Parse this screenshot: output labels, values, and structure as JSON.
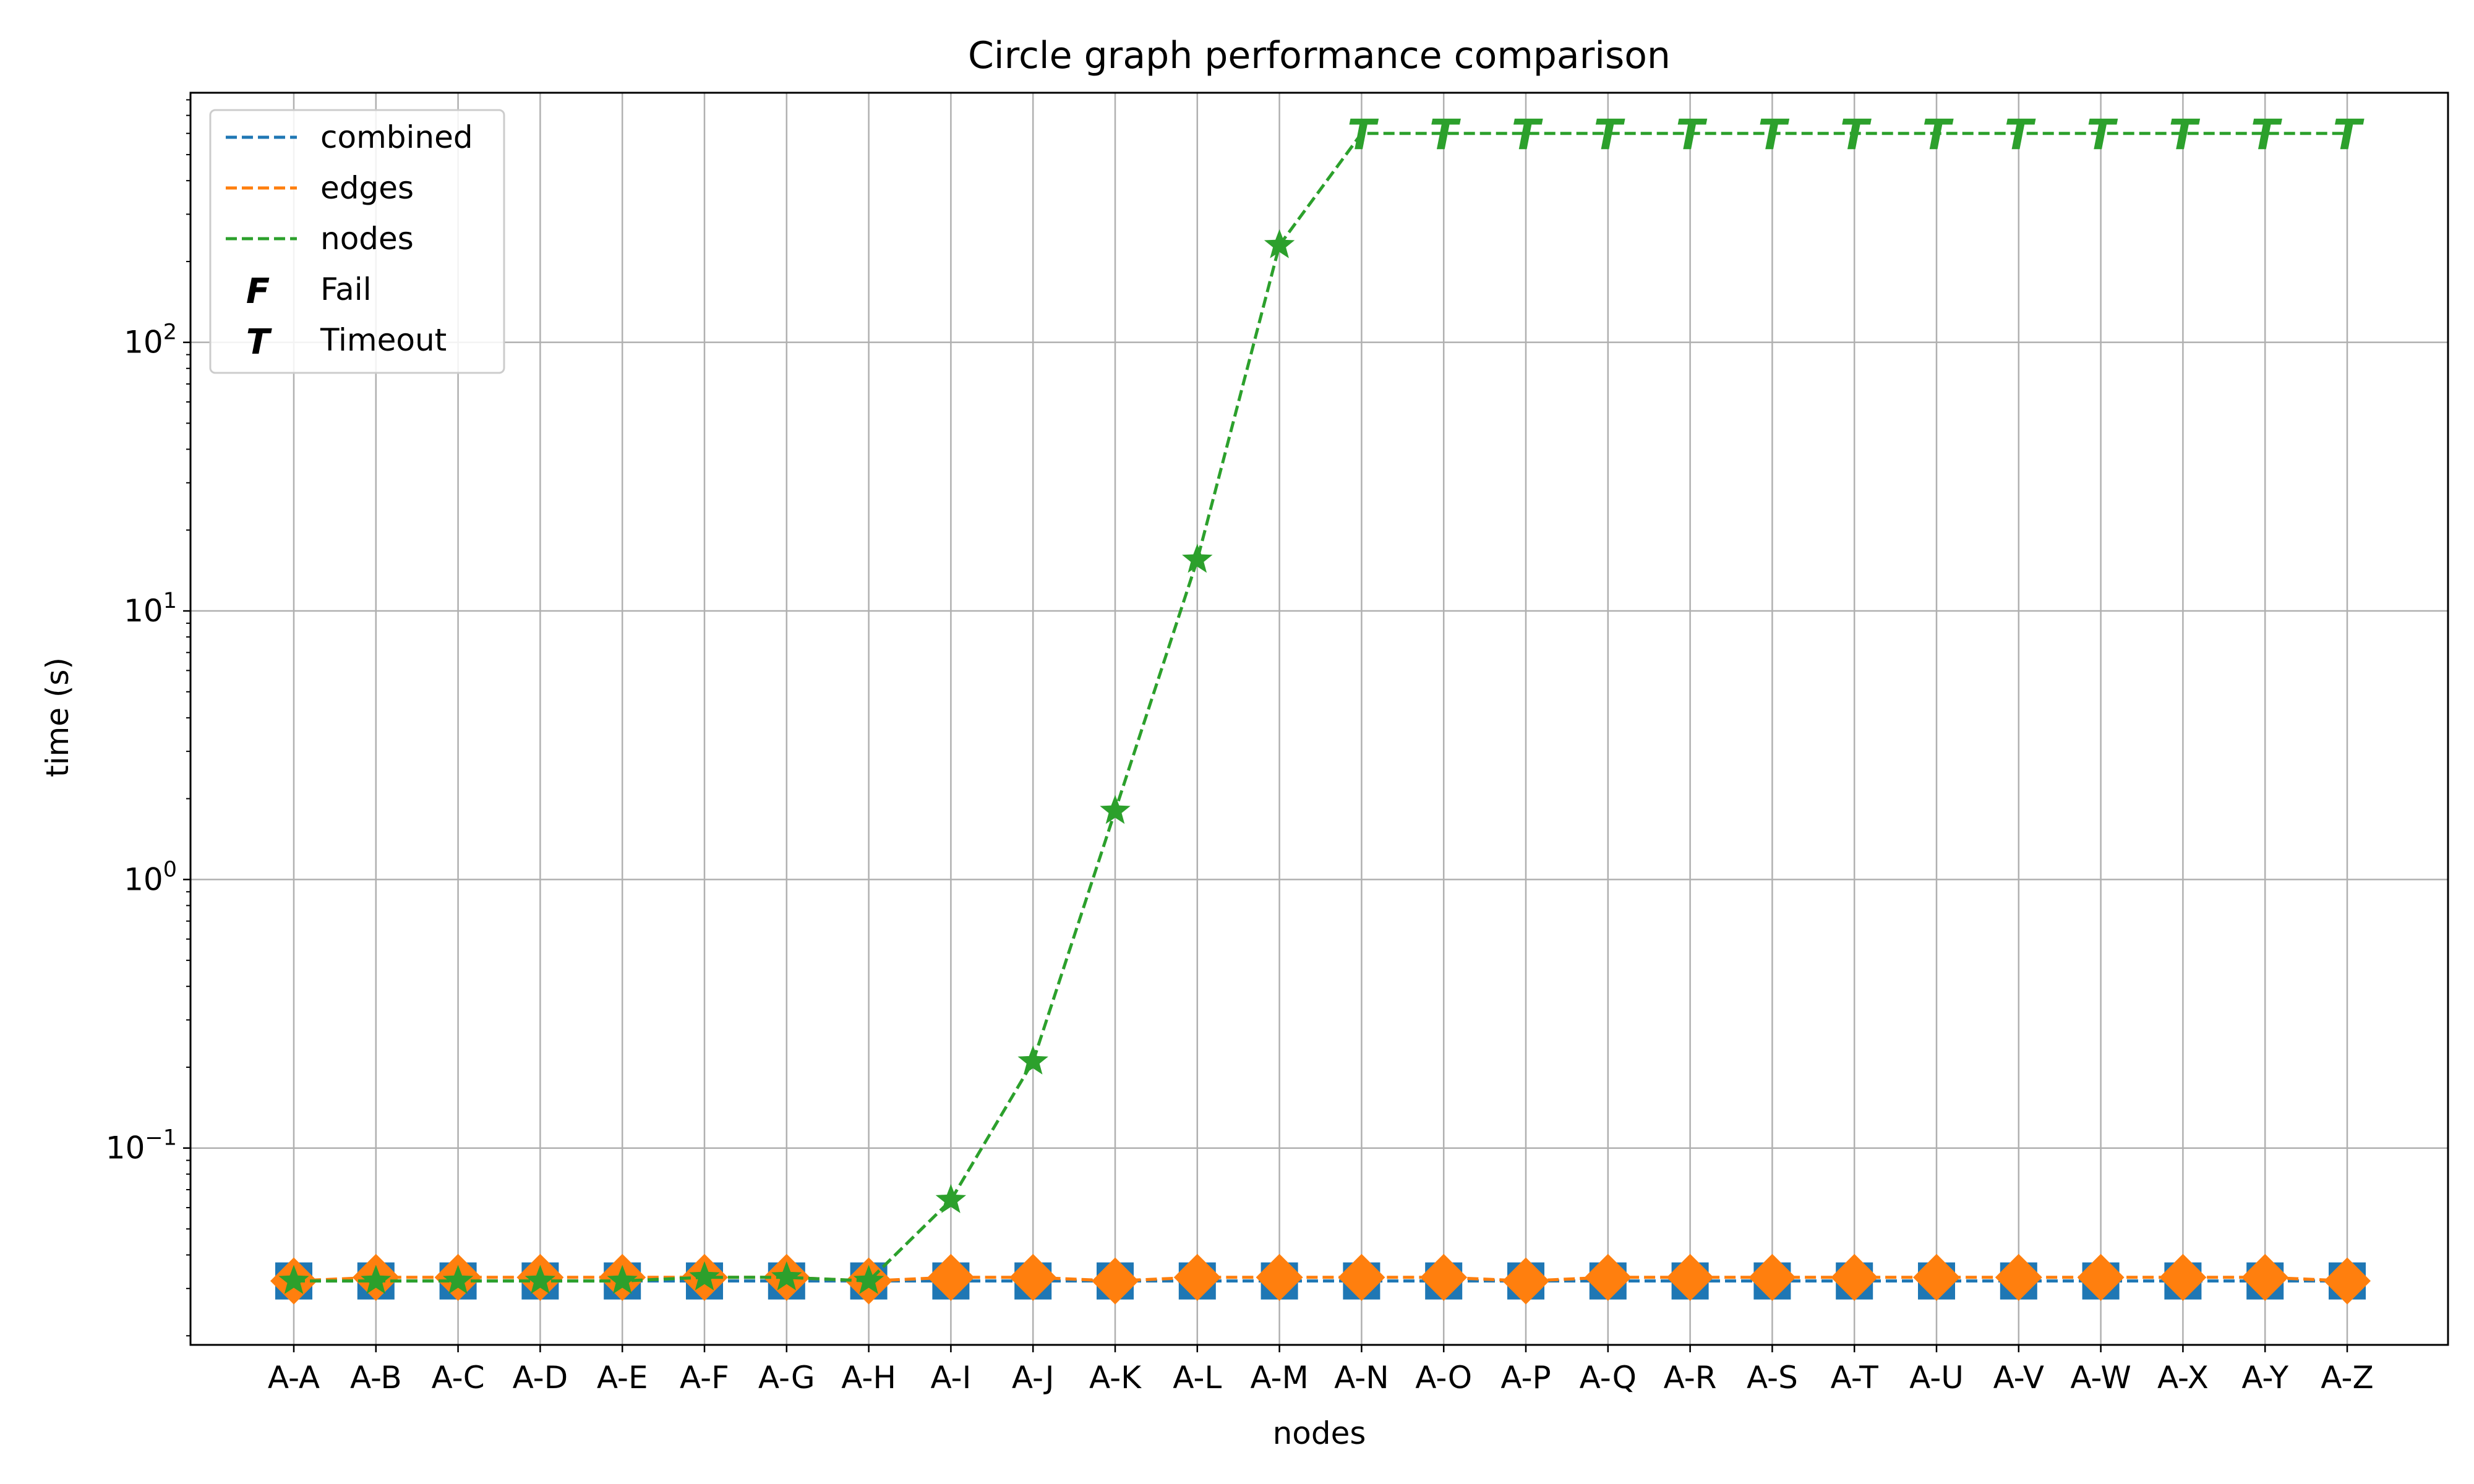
{
  "chart_data": {
    "type": "line",
    "title": "Circle graph performance comparison",
    "xlabel": "nodes",
    "ylabel": "time (s)",
    "yscale": "log",
    "ylim": [
      0.0185,
      850
    ],
    "yticks": [
      {
        "value": 0.1,
        "base": "10",
        "exp": "−1"
      },
      {
        "value": 1,
        "base": "10",
        "exp": "0"
      },
      {
        "value": 10,
        "base": "10",
        "exp": "1"
      },
      {
        "value": 100,
        "base": "10",
        "exp": "2"
      }
    ],
    "grid": true,
    "legend_position": "top-left",
    "categories": [
      "A-A",
      "A-B",
      "A-C",
      "A-D",
      "A-E",
      "A-F",
      "A-G",
      "A-H",
      "A-I",
      "A-J",
      "A-K",
      "A-L",
      "A-M",
      "A-N",
      "A-O",
      "A-P",
      "A-Q",
      "A-R",
      "A-S",
      "A-T",
      "A-U",
      "A-V",
      "A-W",
      "A-X",
      "A-Y",
      "A-Z"
    ],
    "series": [
      {
        "name": "combined",
        "color": "#1f77b4",
        "marker": "square",
        "values": [
          0.032,
          0.032,
          0.032,
          0.032,
          0.032,
          0.032,
          0.032,
          0.032,
          0.032,
          0.032,
          0.032,
          0.032,
          0.032,
          0.032,
          0.032,
          0.032,
          0.032,
          0.032,
          0.032,
          0.032,
          0.032,
          0.032,
          0.032,
          0.032,
          0.032,
          0.032
        ]
      },
      {
        "name": "edges",
        "color": "#ff7f0e",
        "marker": "diamond",
        "values": [
          0.032,
          0.033,
          0.033,
          0.033,
          0.033,
          0.033,
          0.033,
          0.032,
          0.033,
          0.033,
          0.032,
          0.033,
          0.033,
          0.033,
          0.033,
          0.032,
          0.033,
          0.033,
          0.033,
          0.033,
          0.033,
          0.033,
          0.033,
          0.033,
          0.033,
          0.032
        ]
      },
      {
        "name": "nodes",
        "color": "#2ca02c",
        "marker": "star",
        "values": [
          0.032,
          0.032,
          0.032,
          0.032,
          0.032,
          0.033,
          0.033,
          0.032,
          0.064,
          0.21,
          1.8,
          15.5,
          230,
          600,
          600,
          600,
          600,
          600,
          600,
          600,
          600,
          600,
          600,
          600,
          600,
          600
        ],
        "timeout_from_index": 13
      }
    ],
    "legend_markers": [
      {
        "symbol": "F",
        "label": "Fail"
      },
      {
        "symbol": "T",
        "label": "Timeout"
      }
    ]
  }
}
